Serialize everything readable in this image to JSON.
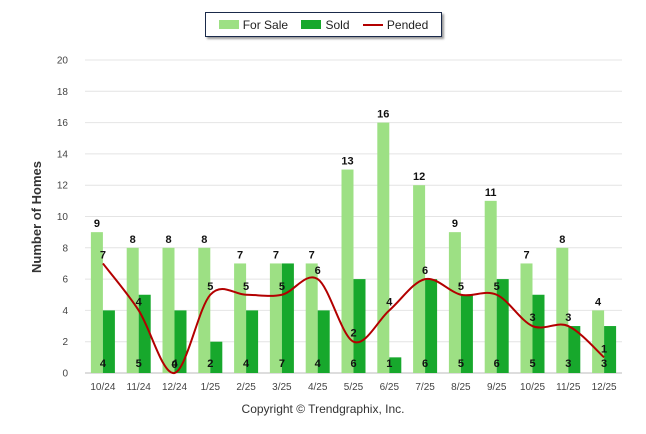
{
  "chart_data": {
    "type": "bar",
    "title": "",
    "xlabel": "",
    "ylabel": "Number of Homes",
    "ylim": [
      0,
      20
    ],
    "yticks": [
      0,
      2,
      4,
      6,
      8,
      10,
      12,
      14,
      16,
      18,
      20
    ],
    "categories": [
      "10/24",
      "11/24",
      "12/24",
      "1/25",
      "2/25",
      "3/25",
      "4/25",
      "5/25",
      "6/25",
      "7/25",
      "8/25",
      "9/25",
      "10/25",
      "11/25",
      "12/25"
    ],
    "series": [
      {
        "name": "For Sale",
        "type": "bar",
        "color": "#9de084",
        "values": [
          9,
          8,
          8,
          8,
          7,
          7,
          7,
          13,
          16,
          12,
          9,
          11,
          7,
          8,
          4
        ]
      },
      {
        "name": "Sold",
        "type": "bar",
        "color": "#17a82c",
        "values": [
          4,
          5,
          4,
          2,
          4,
          7,
          4,
          6,
          1,
          6,
          5,
          6,
          5,
          3,
          3
        ]
      },
      {
        "name": "Pended",
        "type": "line",
        "color": "#b30000",
        "values": [
          7,
          4,
          0,
          5,
          5,
          5,
          6,
          2,
          4,
          6,
          5,
          5,
          3,
          3,
          1
        ]
      }
    ],
    "legend_position": "top-center",
    "grid": true
  },
  "copyright": "Copyright © Trendgraphix, Inc."
}
